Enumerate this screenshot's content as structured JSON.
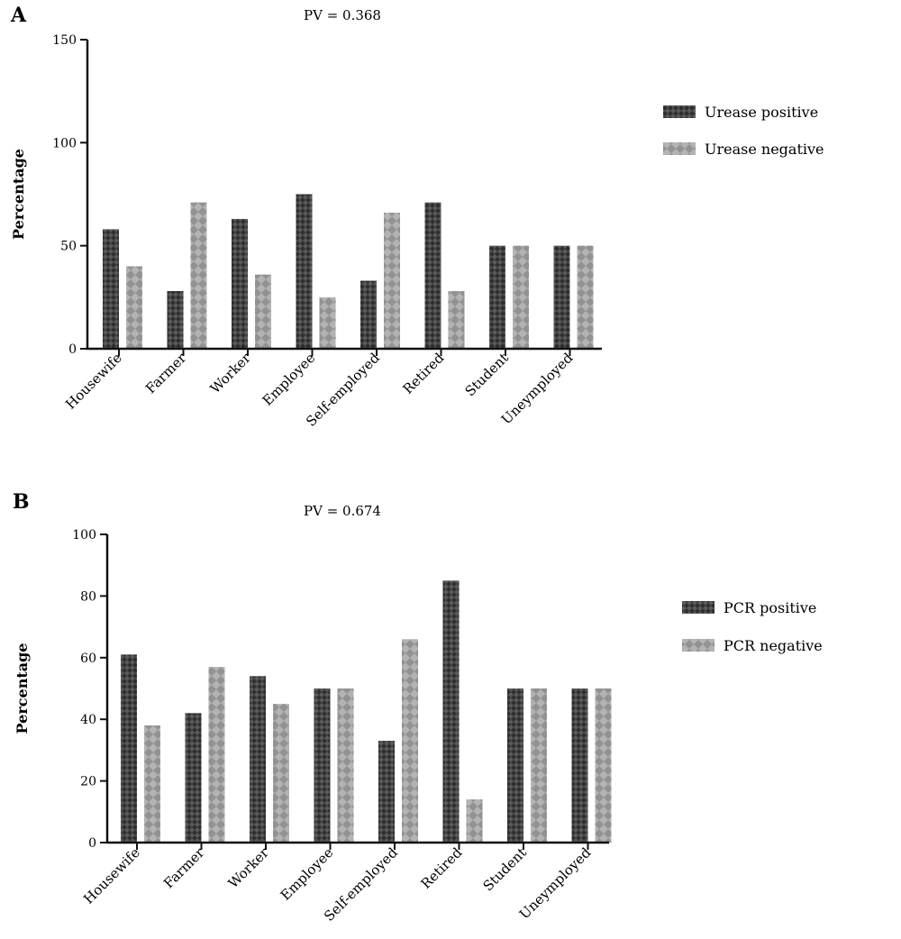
{
  "chart_data": [
    {
      "panel": "A",
      "type": "bar",
      "title": "PV = 0.368",
      "ylabel": "Percentage",
      "xlabel": "",
      "ylim": [
        0,
        150
      ],
      "yticks": [
        0,
        50,
        100,
        150
      ],
      "categories": [
        "Housewife",
        "Farmer",
        "Worker",
        "Employee",
        "Self-employed",
        "Retired",
        "Student",
        "Uneymployed"
      ],
      "series": [
        {
          "name": "Urease positive",
          "values": [
            58,
            28,
            63,
            75,
            33,
            71,
            50,
            50
          ],
          "color": "#3a3a3a"
        },
        {
          "name": "Urease negative",
          "values": [
            40,
            71,
            36,
            25,
            66,
            28,
            50,
            50
          ],
          "color": "#a8a8a8"
        }
      ],
      "legend_position": "right",
      "grid": false
    },
    {
      "panel": "B",
      "type": "bar",
      "title": "PV = 0.674",
      "ylabel": "Percentage",
      "xlabel": "",
      "ylim": [
        0,
        100
      ],
      "yticks": [
        0,
        20,
        40,
        60,
        80,
        100
      ],
      "categories": [
        "Housewife",
        "Farmer",
        "Worker",
        "Employee",
        "Self-employed",
        "Retired",
        "Student",
        "Uneymployed"
      ],
      "series": [
        {
          "name": "PCR positive",
          "values": [
            61,
            42,
            54,
            50,
            33,
            85,
            50,
            50
          ],
          "color": "#3a3a3a"
        },
        {
          "name": "PCR negative",
          "values": [
            38,
            57,
            45,
            50,
            66,
            14,
            50,
            50
          ],
          "color": "#a8a8a8"
        }
      ],
      "legend_position": "right",
      "grid": false
    }
  ]
}
